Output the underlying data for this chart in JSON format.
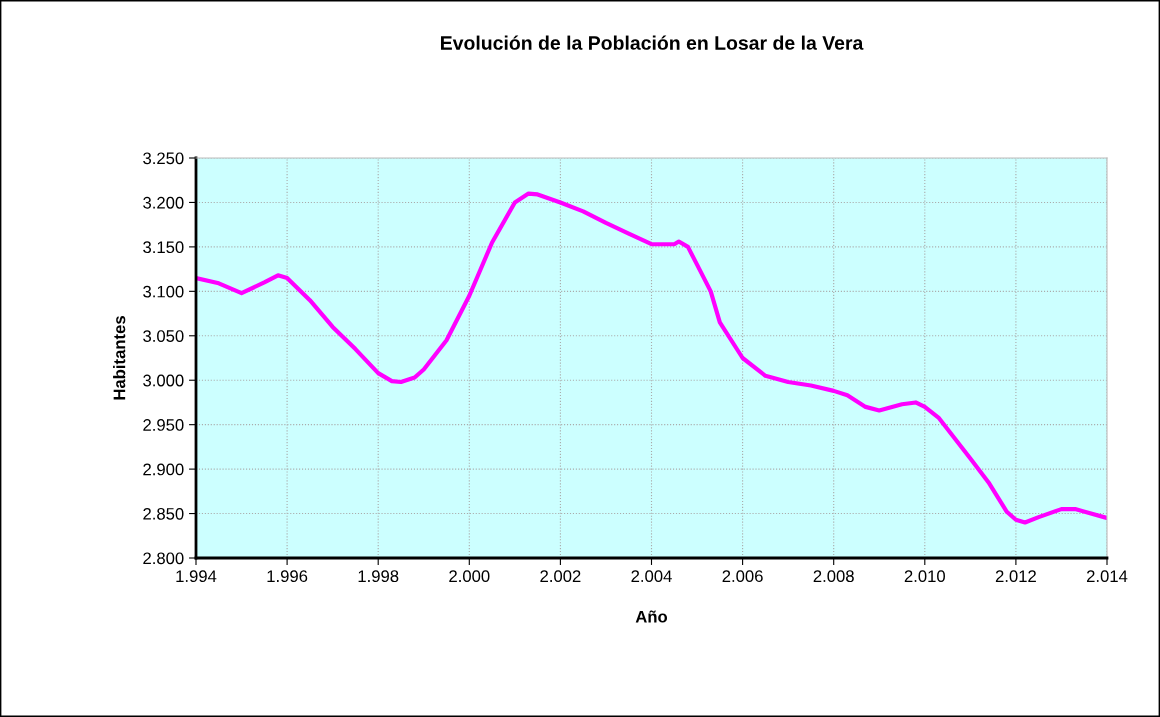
{
  "chart_data": {
    "type": "line",
    "title": "Evolución de la Población en Losar de la Vera",
    "xlabel": "Año",
    "ylabel": "Habitantes",
    "x": [
      1994,
      1994.5,
      1995,
      1995.5,
      1995.8,
      1996,
      1996.5,
      1997,
      1997.5,
      1998,
      1998.3,
      1998.5,
      1998.8,
      1999,
      1999.5,
      2000,
      2000.5,
      2001,
      2001.3,
      2001.5,
      2002,
      2002.5,
      2003,
      2003.5,
      2004,
      2004.5,
      2004.6,
      2004.8,
      2005,
      2005.3,
      2005.5,
      2006,
      2006.5,
      2007,
      2007.5,
      2008,
      2008.3,
      2008.7,
      2009,
      2009.5,
      2009.8,
      2010,
      2010.3,
      2011,
      2011.4,
      2011.8,
      2012,
      2012.2,
      2012.5,
      2013,
      2013.3,
      2014
    ],
    "series": [
      {
        "color": "#ff00ff",
        "values": [
          3115,
          3109,
          3098,
          3110,
          3118,
          3115,
          3090,
          3060,
          3035,
          3008,
          2999,
          2998,
          3003,
          3012,
          3045,
          3095,
          3155,
          3200,
          3210,
          3209,
          3200,
          3190,
          3177,
          3165,
          3153,
          3153,
          3156,
          3150,
          3130,
          3100,
          3065,
          3025,
          3005,
          2998,
          2994,
          2988,
          2983,
          2970,
          2966,
          2973,
          2975,
          2970,
          2958,
          2912,
          2885,
          2852,
          2843,
          2840,
          2846,
          2855,
          2855,
          2845
        ]
      }
    ],
    "xlim": [
      1994,
      2014
    ],
    "xticks": [
      {
        "value": 1994,
        "label": "1.994"
      },
      {
        "value": 1996,
        "label": "1.996"
      },
      {
        "value": 1998,
        "label": "1.998"
      },
      {
        "value": 2000,
        "label": "2.000"
      },
      {
        "value": 2002,
        "label": "2.002"
      },
      {
        "value": 2004,
        "label": "2.004"
      },
      {
        "value": 2006,
        "label": "2.006"
      },
      {
        "value": 2008,
        "label": "2.008"
      },
      {
        "value": 2010,
        "label": "2.010"
      },
      {
        "value": 2012,
        "label": "2.012"
      },
      {
        "value": 2014,
        "label": "2.014"
      }
    ],
    "ylim": [
      2800,
      3250
    ],
    "yticks": [
      {
        "value": 2800,
        "label": "2.800"
      },
      {
        "value": 2850,
        "label": "2.850"
      },
      {
        "value": 2900,
        "label": "2.900"
      },
      {
        "value": 2950,
        "label": "2.950"
      },
      {
        "value": 3000,
        "label": "3.000"
      },
      {
        "value": 3050,
        "label": "3.050"
      },
      {
        "value": 3100,
        "label": "3.100"
      },
      {
        "value": 3150,
        "label": "3.150"
      },
      {
        "value": 3200,
        "label": "3.200"
      },
      {
        "value": 3250,
        "label": "3.250"
      }
    ],
    "grid": true,
    "legend": false,
    "marker": "none",
    "line_style": "solid"
  }
}
